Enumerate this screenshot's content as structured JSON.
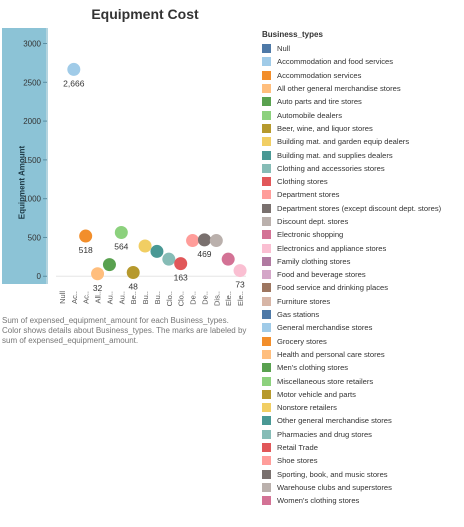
{
  "chart_data": {
    "type": "scatter",
    "title": "Equipment Cost",
    "ylabel": "Equipment Amount",
    "ylim": [
      -100,
      3200
    ],
    "yticks": [
      0,
      500,
      1000,
      1500,
      2000,
      2500,
      3000
    ],
    "grid": false,
    "categories": [
      "Null",
      "Ac..",
      "Ac..",
      "All..",
      "Au..",
      "Au..",
      "Be..",
      "Bu..",
      "Bu..",
      "Clo..",
      "Clo..",
      "De..",
      "De..",
      "Dis..",
      "Ele..",
      "Ele.."
    ],
    "points": [
      {
        "x": "Ac..",
        "y": 2666,
        "label": "2,666",
        "color": "#a0cbe8"
      },
      {
        "x": "Ac..",
        "y": 518,
        "label": "518",
        "color": "#f28e2b"
      },
      {
        "x": "All..",
        "y": 32,
        "label": "32",
        "color": "#ffbe7d"
      },
      {
        "x": "Au..",
        "y": 150,
        "label": "",
        "color": "#59a14f"
      },
      {
        "x": "Au..",
        "y": 564,
        "label": "564",
        "color": "#8cd17d"
      },
      {
        "x": "Be..",
        "y": 48,
        "label": "48",
        "color": "#b6992d"
      },
      {
        "x": "Bu..",
        "y": 390,
        "label": "",
        "color": "#f1ce63"
      },
      {
        "x": "Bu..",
        "y": 320,
        "label": "",
        "color": "#499894"
      },
      {
        "x": "Clo..",
        "y": 220,
        "label": "",
        "color": "#86bcb6"
      },
      {
        "x": "Clo..",
        "y": 163,
        "label": "163",
        "color": "#e15759"
      },
      {
        "x": "De..",
        "y": 460,
        "label": "",
        "color": "#ff9d9a"
      },
      {
        "x": "De..",
        "y": 469,
        "label": "469",
        "color": "#79706e"
      },
      {
        "x": "Dis..",
        "y": 460,
        "label": "",
        "color": "#bab0ac"
      },
      {
        "x": "Ele..",
        "y": 220,
        "label": "",
        "color": "#d37295"
      },
      {
        "x": "Ele..",
        "y": 73,
        "label": "73",
        "color": "#fabfd2"
      }
    ]
  },
  "caption": "Sum of expensed_equipment_amount for each Business_types. Color shows details about Business_types. The marks are labeled by sum of expensed_equipment_amount.",
  "legend": {
    "title": "Business_types",
    "items": [
      {
        "label": "Null",
        "color": "#4e79a7"
      },
      {
        "label": "Accommodation and food services",
        "color": "#a0cbe8"
      },
      {
        "label": "Accommodation services",
        "color": "#f28e2b"
      },
      {
        "label": "All other general merchandise stores",
        "color": "#ffbe7d"
      },
      {
        "label": "Auto parts and tire stores",
        "color": "#59a14f"
      },
      {
        "label": "Automobile dealers",
        "color": "#8cd17d"
      },
      {
        "label": "Beer, wine, and liquor stores",
        "color": "#b6992d"
      },
      {
        "label": "Building mat. and garden equip dealers",
        "color": "#f1ce63"
      },
      {
        "label": "Building mat. and supplies dealers",
        "color": "#499894"
      },
      {
        "label": "Clothing and accessories stores",
        "color": "#86bcb6"
      },
      {
        "label": "Clothing stores",
        "color": "#e15759"
      },
      {
        "label": "Department stores",
        "color": "#ff9d9a"
      },
      {
        "label": "Department stores (except discount dept. stores)",
        "color": "#79706e"
      },
      {
        "label": "Discount dept. stores",
        "color": "#bab0ac"
      },
      {
        "label": "Electronic shopping",
        "color": "#d37295"
      },
      {
        "label": "Electronics and appliance stores",
        "color": "#fabfd2"
      },
      {
        "label": "Family clothing stores",
        "color": "#b07aa1"
      },
      {
        "label": "Food and beverage stores",
        "color": "#d4a6c8"
      },
      {
        "label": "Food service and drinking places",
        "color": "#9d7660"
      },
      {
        "label": "Furniture stores",
        "color": "#d7b5a6"
      },
      {
        "label": "Gas stations",
        "color": "#4e79a7"
      },
      {
        "label": "General merchandise stores",
        "color": "#a0cbe8"
      },
      {
        "label": "Grocery stores",
        "color": "#f28e2b"
      },
      {
        "label": "Health and personal care stores",
        "color": "#ffbe7d"
      },
      {
        "label": "Men's clothing stores",
        "color": "#59a14f"
      },
      {
        "label": "Miscellaneous store retailers",
        "color": "#8cd17d"
      },
      {
        "label": "Motor vehicle and parts",
        "color": "#b6992d"
      },
      {
        "label": "Nonstore retailers",
        "color": "#f1ce63"
      },
      {
        "label": "Other general merchandise stores",
        "color": "#499894"
      },
      {
        "label": "Pharmacies and drug stores",
        "color": "#86bcb6"
      },
      {
        "label": "Retail Trade",
        "color": "#e15759"
      },
      {
        "label": "Shoe stores",
        "color": "#ff9d9a"
      },
      {
        "label": "Sporting, book, and music stores",
        "color": "#79706e"
      },
      {
        "label": "Warehouse clubs and superstores",
        "color": "#bab0ac"
      },
      {
        "label": "Women's clothing stores",
        "color": "#d37295"
      }
    ]
  }
}
